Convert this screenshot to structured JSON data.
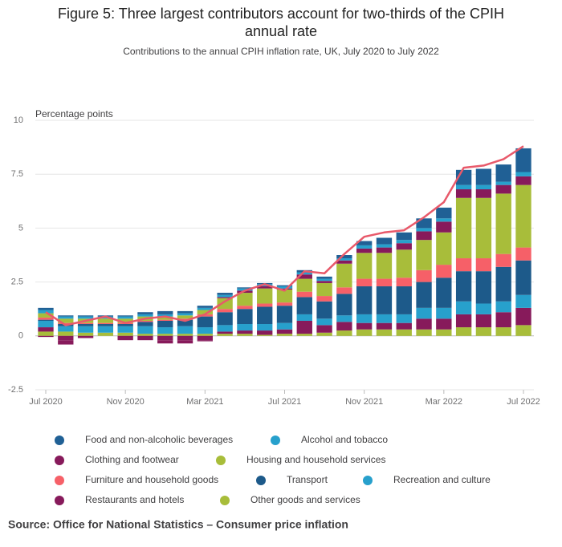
{
  "chart_data": {
    "type": "bar",
    "title": [
      "Figure 5: Three largest contributors account for two-thirds of the CPIH",
      "annual rate"
    ],
    "subtitle": "Contributions to the annual CPIH inflation rate, UK, July 2020 to July 2022",
    "y_label": "Percentage points",
    "source": "Source: Office for National Statistics – Consumer price inflation",
    "stacked": true,
    "categories": [
      "Jul 2020",
      null,
      null,
      null,
      "Nov 2020",
      null,
      null,
      null,
      "Mar 2021",
      null,
      null,
      null,
      "Jul 2021",
      null,
      null,
      null,
      "Nov 2021",
      null,
      null,
      null,
      "Mar 2022",
      null,
      null,
      null,
      "Jul 2022"
    ],
    "ylim": [
      -2.5,
      10
    ],
    "yticks": [
      -2.5,
      0,
      2.5,
      5,
      7.5,
      10
    ],
    "grid": true,
    "series": [
      {
        "name": "Food and non-alcoholic beverages",
        "color": "#206095",
        "values": [
          0.1,
          0.05,
          0.05,
          0.05,
          0.05,
          0.1,
          0.15,
          0.1,
          0.1,
          0.1,
          0.05,
          0.05,
          0.05,
          0.1,
          0.1,
          0.15,
          0.2,
          0.3,
          0.35,
          0.45,
          0.5,
          0.7,
          0.75,
          0.8,
          1.1
        ]
      },
      {
        "name": "Alcohol and tobacco",
        "color": "#27a0cc",
        "values": [
          0.15,
          0.1,
          0.1,
          0.1,
          0.1,
          0.1,
          0.1,
          0.1,
          0.1,
          0.1,
          0.1,
          0.1,
          0.1,
          0.1,
          0.1,
          0.1,
          0.15,
          0.15,
          0.15,
          0.15,
          0.15,
          0.2,
          0.2,
          0.15,
          0.2
        ]
      },
      {
        "name": "Clothing and footwear",
        "color": "#871a5b",
        "values": [
          -0.05,
          -0.2,
          -0.1,
          0.0,
          -0.1,
          -0.1,
          -0.15,
          -0.15,
          -0.05,
          0.05,
          0.1,
          0.1,
          0.05,
          0.2,
          0.1,
          0.15,
          0.2,
          0.25,
          0.3,
          0.4,
          0.5,
          0.4,
          0.4,
          0.4,
          0.4
        ]
      },
      {
        "name": "Housing and household services",
        "color": "#a8bd3a",
        "values": [
          0.2,
          0.2,
          0.2,
          0.2,
          0.2,
          0.2,
          0.15,
          0.15,
          0.2,
          0.5,
          0.6,
          0.7,
          0.6,
          0.6,
          0.6,
          1.1,
          1.2,
          1.2,
          1.3,
          1.4,
          1.5,
          2.8,
          2.8,
          2.8,
          2.9
        ]
      },
      {
        "name": "Furniture and household goods",
        "color": "#f66068",
        "values": [
          0.1,
          0.05,
          0.05,
          0.05,
          0.05,
          0.05,
          0.05,
          0.05,
          0.1,
          0.15,
          0.15,
          0.15,
          0.15,
          0.25,
          0.25,
          0.3,
          0.35,
          0.35,
          0.4,
          0.55,
          0.6,
          0.6,
          0.6,
          0.6,
          0.6
        ]
      },
      {
        "name": "Transport",
        "color": "#1d5a8a",
        "values": [
          0.05,
          0.1,
          0.1,
          0.1,
          0.1,
          0.2,
          0.3,
          0.3,
          0.5,
          0.6,
          0.7,
          0.8,
          0.8,
          0.8,
          0.8,
          1.0,
          1.3,
          1.3,
          1.3,
          1.2,
          1.4,
          1.4,
          1.5,
          1.6,
          1.6
        ]
      },
      {
        "name": "Recreation and culture",
        "color": "#27a0cc",
        "values": [
          0.3,
          0.25,
          0.3,
          0.3,
          0.3,
          0.35,
          0.3,
          0.35,
          0.3,
          0.3,
          0.3,
          0.3,
          0.3,
          0.3,
          0.3,
          0.3,
          0.4,
          0.4,
          0.4,
          0.5,
          0.5,
          0.6,
          0.5,
          0.5,
          0.6
        ]
      },
      {
        "name": "Restaurants and hotels",
        "color": "#871a5b",
        "values": [
          0.2,
          -0.2,
          0.0,
          0.0,
          -0.1,
          -0.1,
          -0.2,
          -0.2,
          -0.2,
          0.1,
          0.15,
          0.2,
          0.2,
          0.6,
          0.35,
          0.4,
          0.3,
          0.3,
          0.3,
          0.5,
          0.5,
          0.6,
          0.6,
          0.7,
          0.8
        ]
      },
      {
        "name": "Other goods and services",
        "color": "#a8bd3a",
        "values": [
          0.2,
          0.2,
          0.15,
          0.15,
          0.15,
          0.1,
          0.1,
          0.1,
          0.1,
          0.1,
          0.1,
          0.05,
          0.1,
          0.1,
          0.15,
          0.25,
          0.3,
          0.3,
          0.3,
          0.3,
          0.3,
          0.4,
          0.4,
          0.4,
          0.5
        ]
      }
    ],
    "line": {
      "color": "#e8596a",
      "values": [
        1.1,
        0.5,
        0.7,
        0.9,
        0.6,
        0.8,
        0.9,
        0.7,
        1.0,
        1.6,
        2.1,
        2.4,
        2.1,
        3.0,
        2.9,
        3.8,
        4.6,
        4.8,
        4.9,
        5.5,
        6.2,
        7.8,
        7.9,
        8.2,
        8.8
      ]
    }
  }
}
